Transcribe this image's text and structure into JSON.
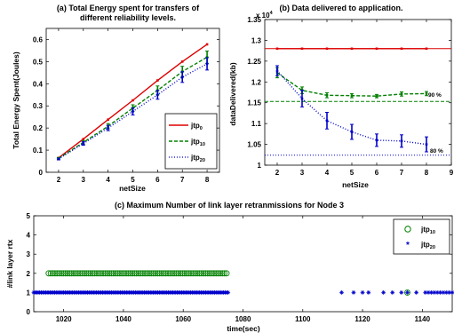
{
  "chart_data": [
    {
      "type": "line",
      "title_line1": "(a) Total Energy spent for transfers of",
      "title_line2": "different reliability levels.",
      "xlabel": "netSize",
      "ylabel": "Total Energy Spent(Joules)",
      "xlim": [
        1.5,
        8.5
      ],
      "ylim": [
        0,
        0.65
      ],
      "xticks": [
        "2",
        "3",
        "4",
        "5",
        "6",
        "7",
        "8"
      ],
      "yticks": [
        "0",
        "0.1",
        "0.2",
        "0.3",
        "0.4",
        "0.5",
        "0.6"
      ],
      "x": [
        2,
        3,
        4,
        5,
        6,
        7,
        8
      ],
      "legend_position": "bottom-right",
      "series": [
        {
          "name": "jtp",
          "sub": "0",
          "color": "#dd0000",
          "style": "solid",
          "values": [
            0.065,
            0.15,
            0.238,
            0.325,
            0.415,
            0.5,
            0.578
          ],
          "err": [
            0,
            0,
            0,
            0,
            0,
            0,
            0
          ]
        },
        {
          "name": "jtp",
          "sub": "10",
          "color": "#008000",
          "style": "dashed",
          "values": [
            0.063,
            0.135,
            0.208,
            0.29,
            0.37,
            0.455,
            0.52
          ],
          "err": [
            0.004,
            0.008,
            0.012,
            0.015,
            0.02,
            0.024,
            0.028
          ]
        },
        {
          "name": "jtp",
          "sub": "20",
          "color": "#0000cc",
          "style": "dotted",
          "values": [
            0.06,
            0.13,
            0.2,
            0.275,
            0.35,
            0.43,
            0.49
          ],
          "err": [
            0.004,
            0.008,
            0.012,
            0.016,
            0.02,
            0.024,
            0.028
          ]
        }
      ]
    },
    {
      "type": "line",
      "title": "(b) Data delivered to application.",
      "exponent_base": "x 10",
      "exponent_power": "4",
      "xlabel": "netSize",
      "ylabel": "dataDelivered(kb)",
      "xlim": [
        1.5,
        9
      ],
      "ylim": [
        1,
        1.35
      ],
      "xticks": [
        "2",
        "3",
        "4",
        "5",
        "6",
        "7",
        "8",
        "9"
      ],
      "yticks": [
        "1",
        "1.05",
        "1.1",
        "1.15",
        "1.2",
        "1.25",
        "1.3",
        "1.35"
      ],
      "x": [
        2,
        3,
        4,
        5,
        6,
        7,
        8
      ],
      "annotation_90": "90 %",
      "annotation_80": "80 %",
      "ref_lines": [
        {
          "value": 1.28,
          "color": "#dd0000",
          "style": "solid"
        },
        {
          "value": 1.153,
          "color": "#008000",
          "style": "dashed"
        },
        {
          "value": 1.024,
          "color": "#0000cc",
          "style": "dotted"
        }
      ],
      "series": [
        {
          "color": "#dd0000",
          "style": "solid",
          "values": [
            1.28,
            1.28,
            1.28,
            1.28,
            1.28,
            1.28,
            1.28
          ],
          "err": [
            0,
            0,
            0,
            0,
            0,
            0,
            0
          ]
        },
        {
          "color": "#008000",
          "style": "dashed",
          "values": [
            1.222,
            1.18,
            1.168,
            1.167,
            1.166,
            1.171,
            1.172
          ],
          "err": [
            0.012,
            0.008,
            0.006,
            0.005,
            0.004,
            0.005,
            0.005
          ]
        },
        {
          "color": "#0000cc",
          "style": "dotted",
          "values": [
            1.227,
            1.16,
            1.107,
            1.08,
            1.06,
            1.058,
            1.05
          ],
          "err": [
            0.012,
            0.02,
            0.02,
            0.018,
            0.015,
            0.015,
            0.018
          ]
        }
      ]
    },
    {
      "type": "scatter",
      "title": "(c) Maximum Number of link layer retranmissions for Node 3",
      "xlabel": "time(sec)",
      "ylabel": "#link layer rtx",
      "xlim": [
        1010,
        1150
      ],
      "ylim": [
        0,
        5
      ],
      "xticks": [
        "1020",
        "1040",
        "1060",
        "1080",
        "1100",
        "1120",
        "1140"
      ],
      "yticks": [
        "0",
        "1",
        "2",
        "3",
        "4",
        "5"
      ],
      "legend_position": "top-right",
      "series": [
        {
          "name": "jtp",
          "sub": "10",
          "color": "#008000",
          "marker": "circle",
          "y": 2,
          "from": 1015,
          "to": 1075,
          "step": 0.7,
          "extra_x": [],
          "extra_y": []
        },
        {
          "name": "jtp",
          "sub": "20",
          "color": "#0000cc",
          "marker": "star",
          "y": 1,
          "from": 1010,
          "to": 1075,
          "step": 0.5,
          "extra_x": [
            1113,
            1117,
            1120,
            1122,
            1127,
            1130,
            1133,
            1135,
            1138,
            1141,
            1142,
            1143,
            1144,
            1145,
            1146,
            1147,
            1148,
            1149,
            1150
          ],
          "extra_y": [
            1,
            1,
            1,
            1,
            1,
            1,
            1,
            1,
            1,
            1,
            1,
            1,
            1,
            1,
            1,
            1,
            1,
            1,
            1
          ]
        },
        {
          "name": "",
          "sub": "",
          "color": "#008000",
          "marker": "circle",
          "y": 1,
          "from": 0,
          "to": 0,
          "step": 1,
          "extra_x": [
            1135
          ],
          "extra_y": [
            1
          ]
        }
      ]
    }
  ]
}
